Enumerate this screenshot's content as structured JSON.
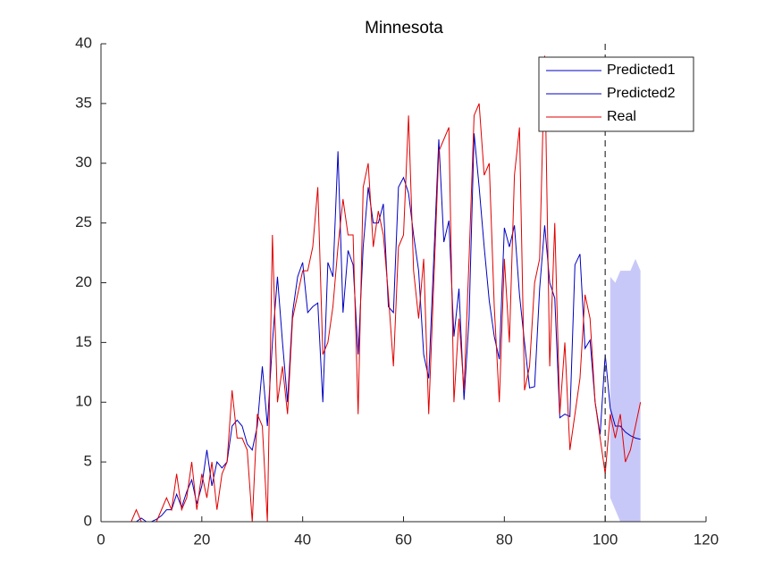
{
  "chart_data": {
    "type": "line",
    "title": "Minnesota",
    "xlim": [
      0,
      120
    ],
    "xticks": [
      0,
      20,
      40,
      60,
      80,
      100,
      120
    ],
    "ylim": [
      0,
      40
    ],
    "yticks": [
      0,
      5,
      10,
      15,
      20,
      25,
      30,
      35,
      40
    ],
    "grid": false,
    "legend": "northeast",
    "vline": 100,
    "band": {
      "color": "#c8c8f8",
      "x": [
        101,
        102,
        103,
        104,
        105,
        106,
        107
      ],
      "lower": [
        2,
        1,
        0,
        0,
        0,
        0,
        0
      ],
      "upper": [
        20.5,
        20,
        21,
        21,
        21,
        22,
        21
      ]
    },
    "series": [
      {
        "name": "Predicted1",
        "color": "#0000c0",
        "x": [
          1,
          2,
          3,
          4,
          5,
          6,
          7,
          8,
          9,
          10,
          11,
          12,
          13,
          14,
          15,
          16,
          17,
          18,
          19,
          20,
          21,
          22,
          23,
          24,
          25,
          26,
          27,
          28,
          29,
          30,
          31,
          32,
          33,
          34,
          35,
          36,
          37,
          38,
          39,
          40,
          41,
          42,
          43,
          44,
          45,
          46,
          47,
          48,
          49,
          50,
          51,
          52,
          53,
          54,
          55,
          56,
          57,
          58,
          59,
          60,
          61,
          62,
          63,
          64,
          65,
          66,
          67,
          68,
          69,
          70,
          71,
          72,
          73,
          74,
          75,
          76,
          77,
          78,
          79,
          80,
          81,
          82,
          83,
          84,
          85,
          86,
          87,
          88,
          89,
          90,
          91,
          92,
          93,
          94,
          95,
          96,
          97,
          98,
          99,
          100
        ],
        "values": [
          0,
          0,
          0,
          0,
          0,
          0,
          0,
          0.3,
          0,
          0,
          0.2,
          0.5,
          1,
          1,
          2.3,
          1.2,
          2.5,
          3.5,
          1.5,
          3,
          6,
          3,
          5,
          4.5,
          5,
          8,
          8.5,
          8,
          6.5,
          6,
          8,
          13,
          8,
          15,
          20.5,
          15,
          10,
          17.5,
          20.5,
          21.7,
          17.5,
          18,
          18.3,
          10,
          21.7,
          20.5,
          31,
          17.5,
          22.7,
          21.5,
          14,
          23,
          28,
          25,
          25,
          26.6,
          18,
          17.5,
          28,
          28.8,
          27.5,
          24,
          21,
          14,
          12,
          22,
          32,
          23.4,
          25.2,
          15.5,
          19.5,
          10.2,
          17,
          32.5,
          28,
          23,
          18.5,
          15.5,
          13.6,
          24.6,
          23,
          24.8,
          19,
          15,
          11.2,
          11.3,
          19.5,
          24.8,
          20,
          18.7,
          8.7,
          9,
          8.8,
          21.5,
          22.4,
          14.5,
          15.2,
          10,
          7.3,
          14
        ]
      },
      {
        "name": "Predicted2",
        "color": "#0000c0",
        "x": [
          100,
          101,
          102,
          103,
          104,
          105,
          106,
          107
        ],
        "values": [
          14,
          9.5,
          8,
          8,
          7.5,
          7.2,
          7,
          6.9
        ]
      },
      {
        "name": "Real",
        "color": "#e00000",
        "x": [
          1,
          2,
          3,
          4,
          5,
          6,
          7,
          8,
          9,
          10,
          11,
          12,
          13,
          14,
          15,
          16,
          17,
          18,
          19,
          20,
          21,
          22,
          23,
          24,
          25,
          26,
          27,
          28,
          29,
          30,
          31,
          32,
          33,
          34,
          35,
          36,
          37,
          38,
          39,
          40,
          41,
          42,
          43,
          44,
          45,
          46,
          47,
          48,
          49,
          50,
          51,
          52,
          53,
          54,
          55,
          56,
          57,
          58,
          59,
          60,
          61,
          62,
          63,
          64,
          65,
          66,
          67,
          68,
          69,
          70,
          71,
          72,
          73,
          74,
          75,
          76,
          77,
          78,
          79,
          80,
          81,
          82,
          83,
          84,
          85,
          86,
          87,
          88,
          89,
          90,
          91,
          92,
          93,
          94,
          95,
          96,
          97,
          98,
          99,
          100,
          101,
          102,
          103,
          104,
          105,
          106,
          107
        ],
        "values": [
          0,
          0,
          0,
          0,
          0,
          0,
          1,
          0,
          0,
          0,
          0,
          1,
          2,
          1,
          4,
          1,
          2,
          5,
          1,
          4,
          2,
          5,
          1,
          4,
          5,
          11,
          7,
          7,
          6,
          0,
          9,
          8,
          0,
          24,
          10,
          13,
          9,
          17,
          19,
          21,
          21,
          23,
          28,
          14,
          15,
          18,
          23,
          27,
          24,
          24,
          9,
          28,
          30,
          23,
          26,
          24,
          19,
          13,
          23,
          24,
          34,
          21,
          17,
          22,
          9,
          20,
          31,
          32,
          33,
          10,
          17,
          11,
          22,
          34,
          35,
          29,
          30,
          18,
          10,
          22,
          15,
          29,
          33,
          11,
          13,
          20,
          22,
          39,
          13,
          25,
          9,
          15,
          6,
          9,
          12,
          19,
          17,
          10,
          7,
          4,
          9,
          7,
          9,
          5,
          6,
          8,
          10
        ]
      }
    ]
  }
}
